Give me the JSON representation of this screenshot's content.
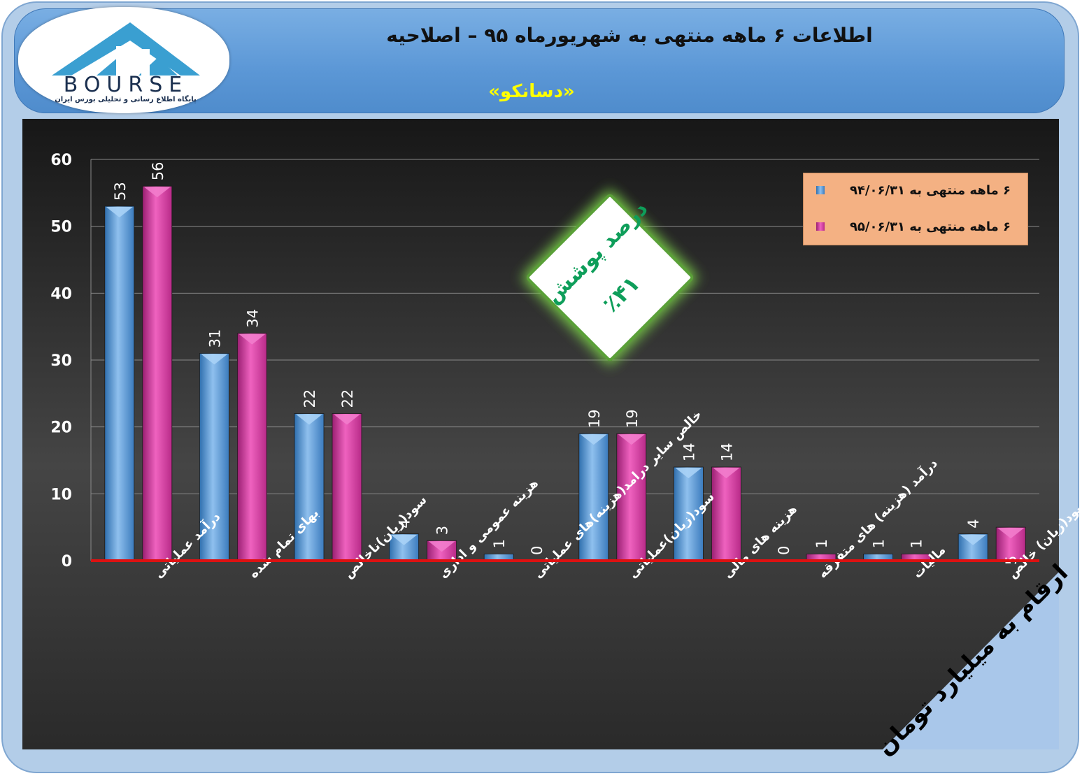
{
  "header": {
    "title": "اطلاعات ۶  ماهه منتهی به شهریورماه ۹۵ – اصلاحیه",
    "subtitle": "«دسانکو»"
  },
  "logo": {
    "brand": "BOURSE",
    "tagline": "پایگاه اطلاع رسانی و تحلیلی بورس ایران"
  },
  "callout": {
    "line1": "درصد پوشش",
    "line2": "٪۴۱"
  },
  "units_banner": "ارقام به میلیارد تومان",
  "colors": {
    "series1": "#5b9bd5",
    "series2": "#d63aa0",
    "baseline": "#dd1111",
    "legend_bg": "#f4b183"
  },
  "chart_data": {
    "type": "bar",
    "ylim": [
      0,
      60
    ],
    "yticks": [
      0,
      10,
      20,
      30,
      40,
      50,
      60
    ],
    "grid": true,
    "legend_position": "top-right",
    "categories": [
      "درآمد عملیاتی",
      "بهای تمام شده",
      "سود(زیان)ناخالص",
      "هزینه عمومی و اداری",
      "خالص سایر درامد(هزینه)های عملیاتی",
      "سود(زیان)عملیاتی",
      "هزینه های مالی",
      "درآمد (هزینه) های متفرقه",
      "مالیات",
      "سود(زیان) خالص"
    ],
    "series": [
      {
        "name": "۶ ماهه منتهی به ۹۴/۰۶/۳۱",
        "values": [
          53,
          31,
          22,
          4,
          1,
          19,
          14,
          0,
          1,
          4
        ],
        "labels": [
          "53",
          "31",
          "22",
          "4",
          "1",
          "19",
          "14",
          "0",
          "1",
          "4"
        ]
      },
      {
        "name": "۶ ماهه منتهی به ۹۵/۰۶/۳۱",
        "values": [
          56,
          34,
          22,
          3,
          0,
          19,
          14,
          1,
          1,
          5
        ],
        "labels": [
          "56",
          "34",
          "22",
          "3",
          "0",
          "19",
          "14",
          "1",
          "1",
          "5"
        ]
      }
    ]
  }
}
